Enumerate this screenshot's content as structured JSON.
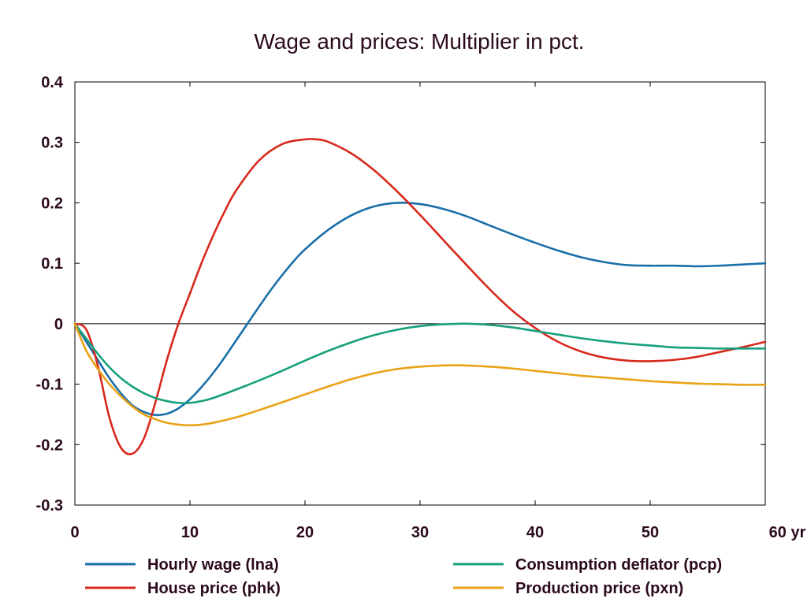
{
  "chart_data": {
    "type": "line",
    "title": "Wage and prices: Multiplier in pct.",
    "x_unit_label": "yr",
    "xlim": [
      0,
      60
    ],
    "ylim": [
      -0.3,
      0.4
    ],
    "x_ticks": [
      0,
      10,
      20,
      30,
      40,
      50,
      60
    ],
    "x_tick_labels": [
      "0",
      "10",
      "20",
      "30",
      "40",
      "50",
      "60 yr"
    ],
    "y_ticks": [
      -0.3,
      -0.2,
      -0.1,
      0,
      0.1,
      0.2,
      0.3,
      0.4
    ],
    "y_tick_labels": [
      "-0.3",
      "-0.2",
      "-0.1",
      "0",
      "0.1",
      "0.2",
      "0.3",
      "0.4"
    ],
    "zero_line": true,
    "grid": false,
    "legend_position": "bottom",
    "series": [
      {
        "name": "Hourly wage (lna)",
        "color": "#1a6fa8",
        "x": [
          0,
          1,
          2,
          3,
          4,
          5,
          6,
          7,
          8,
          9,
          10,
          11,
          12,
          13,
          14,
          15,
          16,
          17,
          18,
          19,
          20,
          22,
          24,
          26,
          28,
          30,
          32,
          34,
          36,
          38,
          40,
          42,
          44,
          46,
          48,
          50,
          52,
          54,
          56,
          58,
          60
        ],
        "y": [
          0,
          -0.03,
          -0.06,
          -0.09,
          -0.115,
          -0.135,
          -0.146,
          -0.151,
          -0.149,
          -0.14,
          -0.125,
          -0.105,
          -0.082,
          -0.056,
          -0.028,
          0.0,
          0.028,
          0.055,
          0.08,
          0.103,
          0.123,
          0.155,
          0.179,
          0.194,
          0.2,
          0.198,
          0.19,
          0.178,
          0.163,
          0.148,
          0.134,
          0.121,
          0.11,
          0.102,
          0.097,
          0.096,
          0.096,
          0.095,
          0.096,
          0.098,
          0.1
        ]
      },
      {
        "name": "House price (phk)",
        "color": "#d7281c",
        "x": [
          0,
          1,
          2,
          3,
          4,
          5,
          6,
          7,
          8,
          9,
          10,
          11,
          12,
          13,
          14,
          16,
          18,
          20,
          21,
          22,
          24,
          26,
          28,
          30,
          32,
          34,
          36,
          38,
          40,
          42,
          44,
          46,
          48,
          50,
          52,
          54,
          56,
          58,
          60
        ],
        "y": [
          0,
          -0.01,
          -0.07,
          -0.155,
          -0.205,
          -0.215,
          -0.19,
          -0.13,
          -0.06,
          0.0,
          0.05,
          0.1,
          0.145,
          0.185,
          0.22,
          0.27,
          0.297,
          0.305,
          0.305,
          0.301,
          0.282,
          0.254,
          0.219,
          0.18,
          0.139,
          0.098,
          0.058,
          0.022,
          -0.007,
          -0.03,
          -0.046,
          -0.056,
          -0.061,
          -0.062,
          -0.06,
          -0.055,
          -0.047,
          -0.039,
          -0.03
        ]
      },
      {
        "name": "Consumption deflator (pcp)",
        "color": "#17a07c",
        "x": [
          0,
          1,
          2,
          3,
          4,
          5,
          6,
          7,
          8,
          9,
          10,
          11,
          12,
          14,
          16,
          18,
          20,
          22,
          24,
          26,
          28,
          30,
          32,
          34,
          36,
          38,
          40,
          42,
          44,
          46,
          48,
          50,
          52,
          54,
          56,
          58,
          60
        ],
        "y": [
          0,
          -0.025,
          -0.05,
          -0.072,
          -0.09,
          -0.104,
          -0.115,
          -0.123,
          -0.128,
          -0.131,
          -0.131,
          -0.128,
          -0.123,
          -0.109,
          -0.094,
          -0.078,
          -0.061,
          -0.045,
          -0.031,
          -0.019,
          -0.01,
          -0.004,
          -0.001,
          0.0,
          -0.002,
          -0.006,
          -0.012,
          -0.018,
          -0.024,
          -0.029,
          -0.033,
          -0.036,
          -0.039,
          -0.04,
          -0.041,
          -0.041,
          -0.041
        ]
      },
      {
        "name": "Production price (pxn)",
        "color": "#e8a317",
        "x": [
          0,
          1,
          2,
          3,
          4,
          5,
          6,
          7,
          8,
          9,
          10,
          11,
          12,
          14,
          16,
          18,
          20,
          22,
          24,
          26,
          28,
          30,
          32,
          34,
          36,
          38,
          40,
          42,
          44,
          46,
          48,
          50,
          52,
          54,
          56,
          58,
          60
        ],
        "y": [
          0,
          -0.045,
          -0.075,
          -0.1,
          -0.12,
          -0.137,
          -0.15,
          -0.158,
          -0.164,
          -0.167,
          -0.168,
          -0.167,
          -0.164,
          -0.155,
          -0.143,
          -0.13,
          -0.117,
          -0.104,
          -0.092,
          -0.082,
          -0.075,
          -0.071,
          -0.069,
          -0.069,
          -0.071,
          -0.074,
          -0.078,
          -0.082,
          -0.086,
          -0.089,
          -0.092,
          -0.095,
          -0.097,
          -0.099,
          -0.1,
          -0.101,
          -0.101
        ]
      }
    ]
  }
}
